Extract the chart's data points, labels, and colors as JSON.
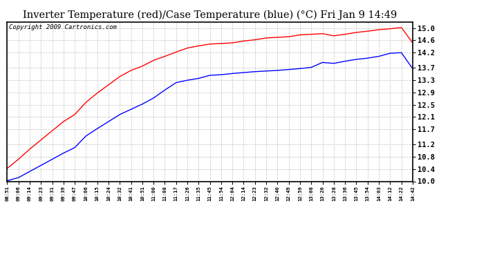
{
  "title": "Inverter Temperature (red)/Case Temperature (blue) (°C) Fri Jan 9 14:49",
  "copyright": "Copyright 2009 Cartronics.com",
  "ylim": [
    10.0,
    15.2
  ],
  "yticks": [
    10.0,
    10.4,
    10.8,
    11.2,
    11.7,
    12.1,
    12.5,
    12.9,
    13.3,
    13.7,
    14.2,
    14.6,
    15.0
  ],
  "xtick_labels": [
    "08:51",
    "09:06",
    "09:14",
    "09:23",
    "09:31",
    "09:39",
    "09:47",
    "10:06",
    "10:15",
    "10:24",
    "10:32",
    "10:41",
    "10:51",
    "11:00",
    "11:08",
    "11:17",
    "11:26",
    "11:35",
    "11:45",
    "11:54",
    "12:04",
    "12:14",
    "12:23",
    "12:32",
    "12:40",
    "12:49",
    "12:59",
    "13:08",
    "13:20",
    "13:28",
    "13:36",
    "13:45",
    "13:54",
    "14:03",
    "14:12",
    "14:22",
    "14:42"
  ],
  "red_data": [
    10.42,
    10.72,
    11.05,
    11.35,
    11.65,
    11.95,
    12.18,
    12.58,
    12.88,
    13.15,
    13.42,
    13.62,
    13.76,
    13.95,
    14.08,
    14.22,
    14.35,
    14.42,
    14.48,
    14.5,
    14.52,
    14.58,
    14.62,
    14.68,
    14.7,
    14.72,
    14.78,
    14.8,
    14.82,
    14.75,
    14.8,
    14.86,
    14.9,
    14.95,
    14.98,
    15.02,
    14.52
  ],
  "blue_data": [
    10.02,
    10.12,
    10.32,
    10.52,
    10.72,
    10.92,
    11.1,
    11.48,
    11.72,
    11.95,
    12.18,
    12.35,
    12.52,
    12.72,
    12.98,
    13.22,
    13.3,
    13.36,
    13.46,
    13.48,
    13.52,
    13.55,
    13.58,
    13.6,
    13.62,
    13.65,
    13.68,
    13.72,
    13.88,
    13.85,
    13.92,
    13.98,
    14.02,
    14.08,
    14.18,
    14.2,
    13.68
  ],
  "red_color": "#ff0000",
  "blue_color": "#0000ff",
  "bg_color": "#ffffff",
  "plot_bg_color": "#ffffff",
  "grid_color": "#bbbbbb",
  "border_color": "#000000",
  "title_fontsize": 10.5,
  "copyright_fontsize": 6.5,
  "fig_width": 6.9,
  "fig_height": 3.75,
  "fig_dpi": 100
}
